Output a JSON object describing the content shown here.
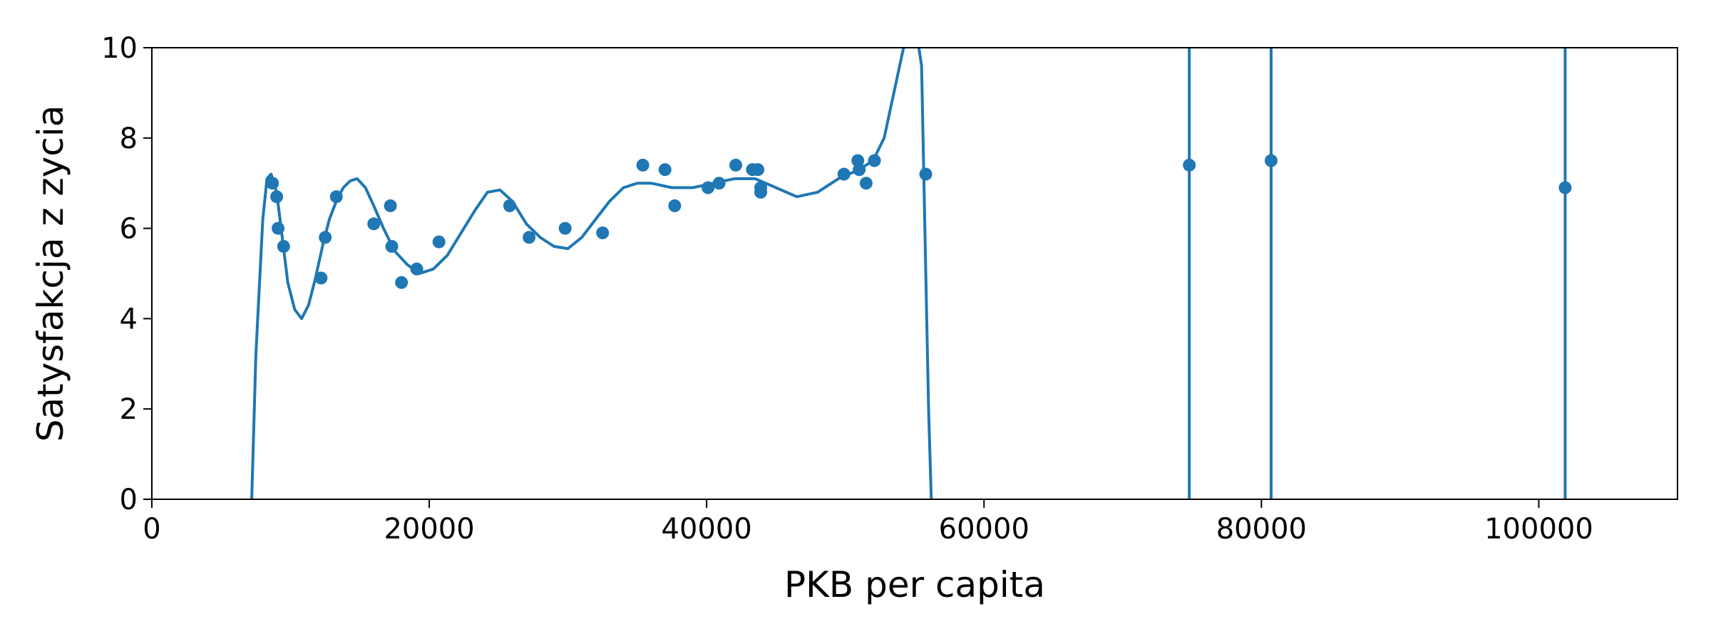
{
  "chart_data": {
    "type": "scatter",
    "title": "",
    "xlabel": "PKB per capita",
    "ylabel": "Satysfakcja z zycia",
    "xlim": [
      0,
      110000
    ],
    "ylim": [
      0,
      10
    ],
    "x_ticks": [
      0,
      20000,
      40000,
      60000,
      80000,
      100000
    ],
    "y_ticks": [
      0,
      2,
      4,
      6,
      8,
      10
    ],
    "grid": false,
    "legend": "none",
    "color": "#1f77b4",
    "series": [
      {
        "type": "scatter",
        "x": [
          8700,
          9000,
          9100,
          9500,
          12200,
          12500,
          13300,
          16000,
          17200,
          17300,
          18000,
          19100,
          20700,
          25800,
          27200,
          29800,
          32500,
          35400,
          37000,
          37700,
          40100,
          40900,
          42100,
          43300,
          43700,
          43900,
          43900,
          49900,
          50900,
          51000,
          51500,
          52100,
          55800,
          74800,
          80700,
          101900
        ],
        "y": [
          7.0,
          6.7,
          6.0,
          5.6,
          4.9,
          5.8,
          6.7,
          6.1,
          6.5,
          5.6,
          4.8,
          5.1,
          5.7,
          6.5,
          5.8,
          6.0,
          5.9,
          7.4,
          7.3,
          6.5,
          6.9,
          7.0,
          7.4,
          7.3,
          7.3,
          6.9,
          6.8,
          7.2,
          7.5,
          7.3,
          7.0,
          7.5,
          7.2,
          7.4,
          7.5,
          6.9
        ]
      },
      {
        "type": "line",
        "x": [
          7200,
          7500,
          8000,
          8300,
          8600,
          9000,
          9400,
          9800,
          10300,
          10800,
          11300,
          11800,
          12300,
          12800,
          13300,
          13800,
          14300,
          14800,
          15400,
          16000,
          16700,
          17500,
          18400,
          19300,
          20300,
          21300,
          22300,
          23300,
          24200,
          25100,
          26000,
          27000,
          28000,
          29000,
          30000,
          31000,
          32000,
          33000,
          34000,
          35000,
          36000,
          37500,
          39000,
          40500,
          42000,
          43500,
          45000,
          46500,
          48000,
          49500,
          51000,
          52000,
          52800,
          53500,
          54200,
          54700,
          55000,
          55500,
          55800,
          56000,
          56200
        ],
        "y": [
          0,
          3.2,
          6.2,
          7.1,
          7.2,
          6.8,
          5.8,
          4.8,
          4.2,
          4.0,
          4.3,
          4.9,
          5.6,
          6.2,
          6.6,
          6.9,
          7.05,
          7.1,
          6.9,
          6.5,
          6.0,
          5.5,
          5.2,
          5.0,
          5.1,
          5.4,
          5.9,
          6.4,
          6.8,
          6.85,
          6.6,
          6.1,
          5.8,
          5.6,
          5.55,
          5.8,
          6.2,
          6.6,
          6.9,
          7.0,
          7.0,
          6.9,
          6.9,
          7.0,
          7.1,
          7.1,
          6.9,
          6.7,
          6.8,
          7.1,
          7.3,
          7.5,
          8.0,
          9.0,
          10.0,
          10.6,
          10.6,
          9.6,
          5.0,
          2.0,
          0
        ]
      }
    ],
    "vertical_lines_x": [
      74800,
      80700,
      101900
    ]
  }
}
